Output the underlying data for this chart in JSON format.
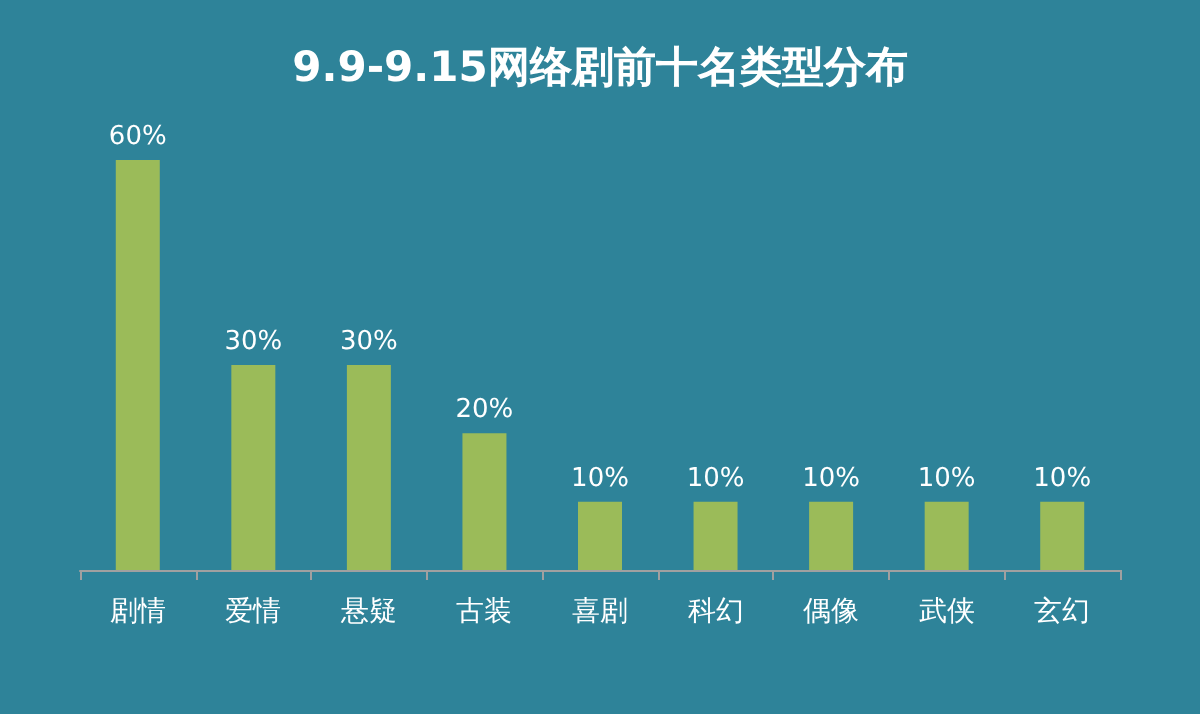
{
  "chart_data": {
    "type": "bar",
    "title": "9.9-9.15网络剧前十名类型分布",
    "categories": [
      "剧情",
      "爱情",
      "悬疑",
      "古装",
      "喜剧",
      "科幻",
      "偶像",
      "武侠",
      "玄幻"
    ],
    "values": [
      60,
      30,
      30,
      20,
      10,
      10,
      10,
      10,
      10
    ],
    "value_labels": [
      "60%",
      "30%",
      "30%",
      "20%",
      "10%",
      "10%",
      "10%",
      "10%",
      "10%"
    ],
    "color": "#9bbb59"
  }
}
